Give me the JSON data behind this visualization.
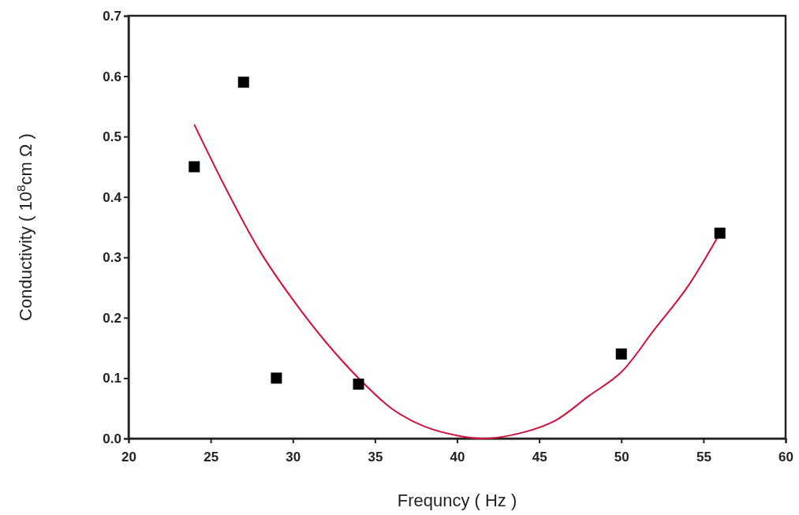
{
  "chart_data": {
    "type": "scatter",
    "xlabel": "Frequncy ( Hz )",
    "ylabel": "Conductivity ( 10$^{8}$cm Ω )",
    "xlim": [
      20,
      60
    ],
    "xticks": [
      20,
      25,
      30,
      35,
      40,
      45,
      50,
      55,
      60
    ],
    "ylim": [
      0,
      0.7
    ],
    "yticks": [
      {
        "value": 0,
        "label": "0.0"
      },
      {
        "value": 0.1,
        "label": "0.1"
      },
      {
        "value": 0.2,
        "label": "0.2"
      },
      {
        "value": 0.3,
        "label": "0.3"
      },
      {
        "value": 0.4,
        "label": "0.4"
      },
      {
        "value": 0.5,
        "label": "0.5"
      },
      {
        "value": 0.6,
        "label": "0.6"
      },
      {
        "value": 0.7,
        "label": "0.7"
      }
    ],
    "marker": "square",
    "grid": false,
    "series": [
      {
        "color": "#000000",
        "x": [
          24,
          27,
          29,
          34,
          50,
          56
        ],
        "values": [
          0.45,
          0.59,
          0.1,
          0.09,
          0.14,
          0.34
        ]
      },
      {
        "type": "line",
        "color": "#d0103a",
        "marker": "none",
        "x": [
          24,
          26,
          28,
          30,
          32,
          34,
          36,
          38,
          40,
          41.7,
          44,
          46,
          48,
          50,
          52,
          54,
          56
        ],
        "values": [
          0.52,
          0.41,
          0.31,
          0.23,
          0.16,
          0.1,
          0.05,
          0.02,
          0.005,
          0,
          0.01,
          0.03,
          0.07,
          0.11,
          0.18,
          0.25,
          0.34
        ]
      }
    ]
  }
}
